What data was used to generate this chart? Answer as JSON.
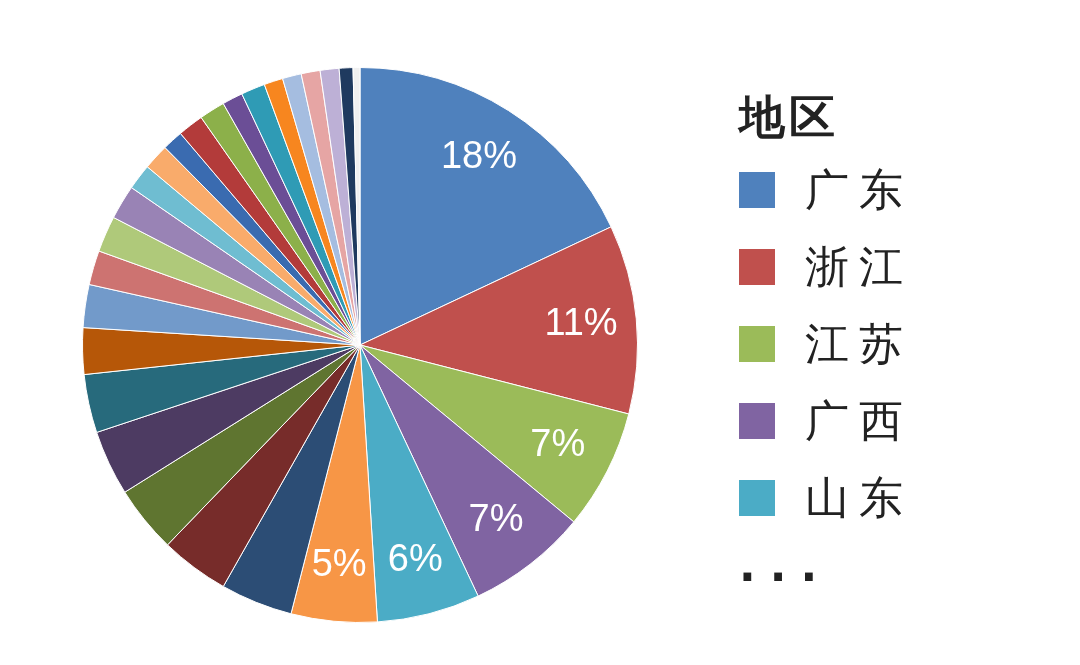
{
  "chart_data": {
    "type": "pie",
    "legend_title": "地区",
    "legend": "right",
    "categories": [
      "广东",
      "浙江",
      "江苏",
      "广西",
      "山东",
      null,
      null,
      null,
      null,
      null,
      null,
      null,
      null,
      null,
      null,
      null,
      null,
      null,
      null,
      null,
      null,
      null,
      null,
      null,
      null,
      null,
      null,
      null,
      null
    ],
    "values": [
      18,
      11,
      7,
      7,
      6,
      5,
      4.2,
      4.0,
      3.9,
      3.8,
      3.4,
      2.7,
      2.5,
      2.0,
      2.1,
      2.0,
      1.5,
      1.5,
      1.2,
      1.5,
      1.5,
      1.2,
      1.4,
      1.1,
      1.1,
      1.1,
      1.1,
      0.8,
      0.4
    ],
    "colors": [
      "#4f81bd",
      "#c0504d",
      "#9bbb59",
      "#8064a2",
      "#4bacc6",
      "#f79646",
      "#2c4d75",
      "#772c2a",
      "#5f7530",
      "#4d3b62",
      "#276a7c",
      "#b65708",
      "#729aca",
      "#cd7371",
      "#afc97a",
      "#9983b5",
      "#6fbdd1",
      "#f9ab6b",
      "#3a6bb0",
      "#b33b3a",
      "#8cb04a",
      "#6b4e96",
      "#2f9bb5",
      "#f7861f",
      "#a5bde0",
      "#e6a5a4",
      "#bdb0d6",
      "#1f3a5f",
      "#f0f0f0"
    ],
    "value_labels": [
      "18%",
      "11%",
      "7%",
      "7%",
      "6%",
      "5%",
      null,
      null,
      null,
      null,
      null,
      null,
      null,
      null,
      null,
      null,
      null,
      null,
      null,
      null,
      null,
      null,
      null,
      null,
      null,
      null,
      null,
      null,
      null
    ],
    "annotations": [
      "..."
    ]
  }
}
